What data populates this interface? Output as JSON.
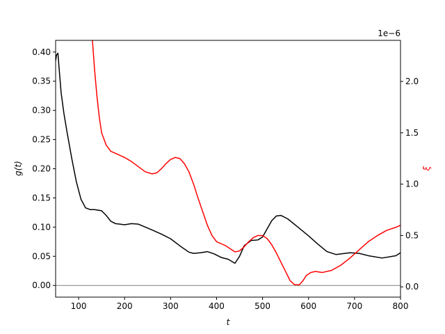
{
  "chart_data": {
    "type": "line",
    "x": [
      50,
      55,
      60,
      70,
      80,
      90,
      100,
      110,
      120,
      130,
      150,
      170,
      190,
      210,
      230,
      250,
      270,
      290,
      310,
      330,
      350,
      370,
      380,
      400,
      420,
      435,
      445,
      460,
      475,
      490,
      500,
      510,
      520,
      530,
      540,
      555,
      580,
      600,
      620,
      640,
      660,
      690,
      710,
      730,
      760,
      790,
      800
    ],
    "xlabel": "t",
    "xlim": [
      50,
      800
    ],
    "xticks": [
      "100",
      "200",
      "300",
      "400",
      "500",
      "600",
      "700",
      "800"
    ],
    "ylabel_left": "g(t)",
    "ylim_left": [
      -0.02,
      0.42
    ],
    "yticks_left": [
      "0.00",
      "0.05",
      "0.10",
      "0.15",
      "0.20",
      "0.25",
      "0.30",
      "0.35",
      "0.40"
    ],
    "ylabel_right": "ξ",
    "ylim_right": [
      -1e-07,
      2.4e-06
    ],
    "yticks_right": [
      "0.0",
      "0.5",
      "1.0",
      "1.5",
      "2.0"
    ],
    "offset_text_right": "1e−6",
    "hline_left": 0,
    "series": [
      {
        "axis": "left",
        "color": "#000000",
        "x": [
          50,
          52,
          55,
          58,
          62,
          68,
          75,
          85,
          95,
          105,
          115,
          125,
          135,
          150,
          160,
          170,
          180,
          190,
          200,
          215,
          230,
          245,
          260,
          280,
          300,
          320,
          340,
          350,
          365,
          380,
          395,
          410,
          425,
          440,
          450,
          460,
          475,
          490,
          500,
          510,
          520,
          530,
          540,
          555,
          580,
          600,
          620,
          640,
          660,
          690,
          710,
          730,
          760,
          790,
          800
        ],
        "values": [
          0.385,
          0.395,
          0.398,
          0.368,
          0.33,
          0.295,
          0.262,
          0.218,
          0.178,
          0.148,
          0.133,
          0.13,
          0.13,
          0.128,
          0.12,
          0.11,
          0.106,
          0.105,
          0.104,
          0.106,
          0.105,
          0.1,
          0.095,
          0.088,
          0.08,
          0.068,
          0.057,
          0.055,
          0.056,
          0.058,
          0.054,
          0.048,
          0.045,
          0.038,
          0.05,
          0.068,
          0.077,
          0.078,
          0.083,
          0.097,
          0.111,
          0.119,
          0.12,
          0.114,
          0.098,
          0.085,
          0.071,
          0.058,
          0.053,
          0.056,
          0.055,
          0.051,
          0.047,
          0.051,
          0.056
        ]
      },
      {
        "axis": "right",
        "color": "#ff0000",
        "x": [
          130,
          135,
          140,
          145,
          150,
          160,
          170,
          180,
          190,
          200,
          215,
          230,
          245,
          260,
          270,
          280,
          290,
          300,
          310,
          320,
          330,
          340,
          350,
          360,
          370,
          380,
          390,
          400,
          410,
          420,
          430,
          440,
          450,
          460,
          470,
          480,
          490,
          500,
          510,
          520,
          530,
          540,
          550,
          560,
          570,
          580,
          588,
          595,
          605,
          615,
          630,
          650,
          670,
          690,
          710,
          730,
          750,
          770,
          790,
          800
        ],
        "values": [
          2.4e-06,
          2.1e-06,
          1.85e-06,
          1.65e-06,
          1.5e-06,
          1.38e-06,
          1.32e-06,
          1.3e-06,
          1.28e-06,
          1.26e-06,
          1.22e-06,
          1.17e-06,
          1.12e-06,
          1.1e-06,
          1.11e-06,
          1.15e-06,
          1.2e-06,
          1.24e-06,
          1.26e-06,
          1.25e-06,
          1.2e-06,
          1.12e-06,
          1e-06,
          8.6e-07,
          7.3e-07,
          6e-07,
          5e-07,
          4.4e-07,
          4.2e-07,
          4e-07,
          3.7e-07,
          3.4e-07,
          3.5e-07,
          3.9e-07,
          4.4e-07,
          4.8e-07,
          5e-07,
          5e-07,
          4.7e-07,
          4.1e-07,
          3.3e-07,
          2.4e-07,
          1.5e-07,
          6e-08,
          2e-08,
          2e-08,
          6e-08,
          1.1e-07,
          1.4e-07,
          1.5e-07,
          1.4e-07,
          1.6e-07,
          2.1e-07,
          2.8e-07,
          3.6e-07,
          4.4e-07,
          5e-07,
          5.5e-07,
          5.8e-07,
          6e-07
        ]
      }
    ]
  }
}
